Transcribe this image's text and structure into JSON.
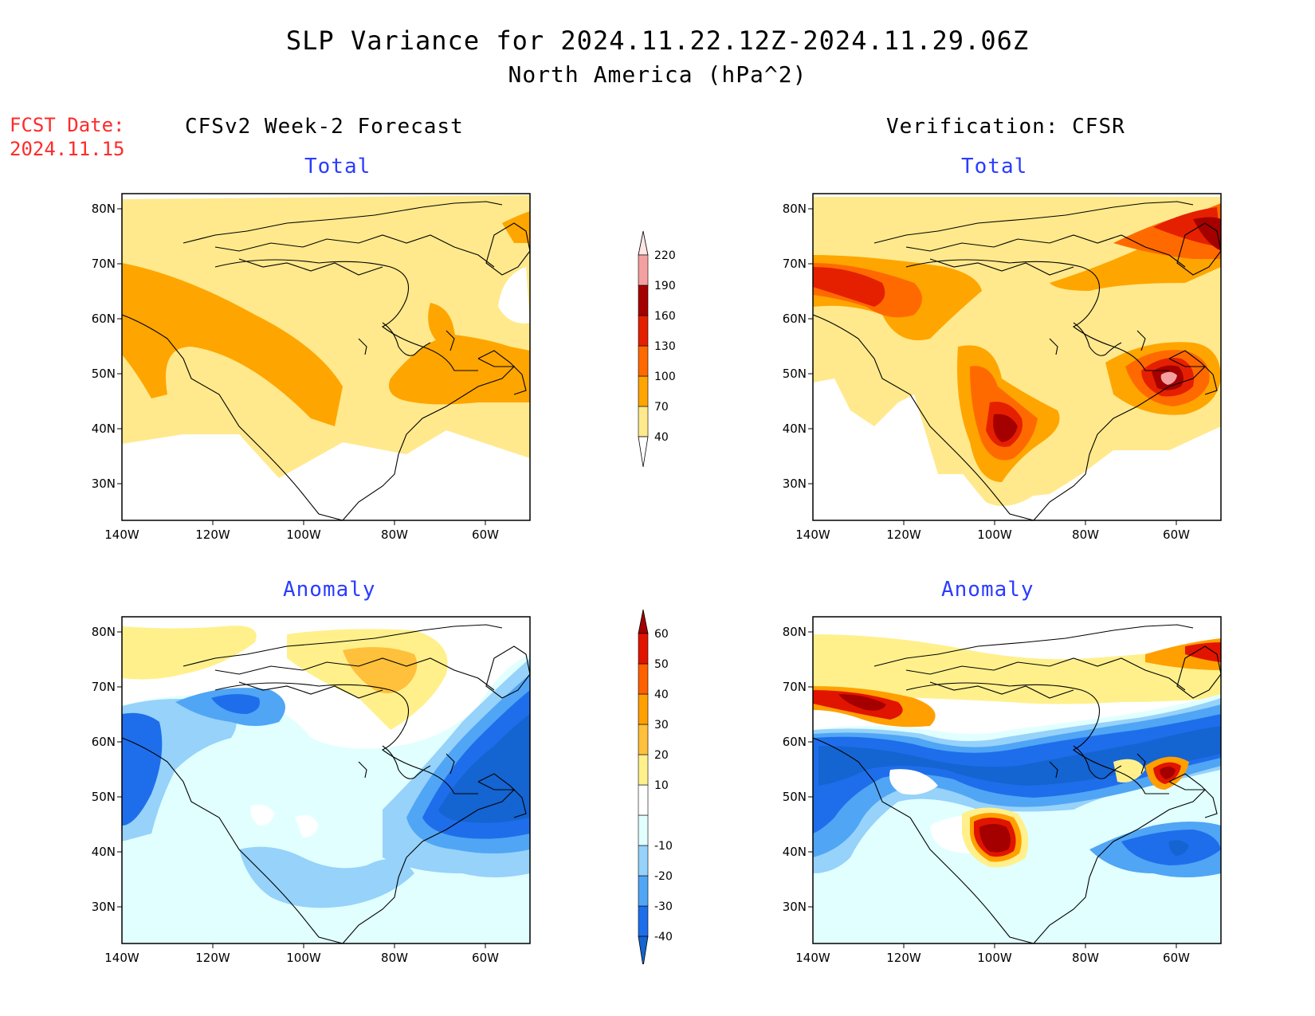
{
  "header": {
    "title": "SLP Variance for 2024.11.22.12Z-2024.11.29.06Z",
    "subtitle": "North America (hPa^2)",
    "fcst_label": "FCST Date:",
    "fcst_date": "2024.11.15"
  },
  "columns": {
    "left": "CFSv2 Week-2 Forecast",
    "right": "Verification: CFSR"
  },
  "panels": {
    "total_label": "Total",
    "anomaly_label": "Anomaly"
  },
  "axes": {
    "lat_ticks": [
      "80N",
      "70N",
      "60N",
      "50N",
      "40N",
      "30N"
    ],
    "lon_ticks": [
      "140W",
      "120W",
      "100W",
      "80W",
      "60W"
    ],
    "lat_range": [
      25,
      85
    ],
    "lon_range": [
      -140,
      -50
    ]
  },
  "colorbars": {
    "total": {
      "levels": [
        "40",
        "70",
        "100",
        "130",
        "160",
        "190",
        "220"
      ],
      "colors": [
        "#ffe98c",
        "#ffa500",
        "#ff6a00",
        "#e52000",
        "#a50000",
        "#f4a0a0",
        "#ffe6e6"
      ]
    },
    "anomaly": {
      "levels": [
        "-40",
        "-30",
        "-20",
        "-10",
        "10",
        "20",
        "30",
        "40",
        "50",
        "60"
      ],
      "colors": [
        "#1464d2",
        "#1e6eeb",
        "#50a5f5",
        "#96d2fa",
        "#e1ffff",
        "#ffffff",
        "#fff08c",
        "#ffc03c",
        "#ffa000",
        "#ff6000",
        "#e11400",
        "#a50000"
      ]
    }
  },
  "colors": {
    "title_red": "#ff2a2a",
    "subtitle_blue": "#2a3cff"
  }
}
